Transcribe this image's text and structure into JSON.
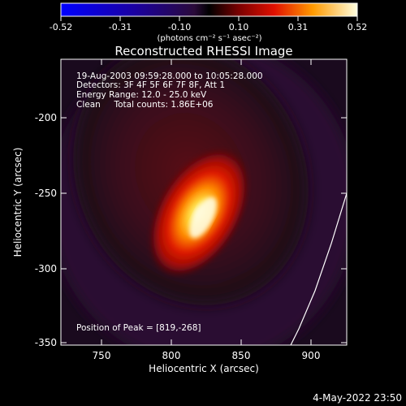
{
  "colorbar": {
    "ticks": [
      "-0.52",
      "-0.31",
      "-0.10",
      "0.10",
      "0.31",
      "0.52"
    ],
    "unit": "(photons cm⁻² s⁻¹ asec⁻²)"
  },
  "plot": {
    "title": "Reconstructed RHESSI Image",
    "xlabel": "Heliocentric X (arcsec)",
    "ylabel": "Heliocentric Y (arcsec)",
    "xticks": [
      "750",
      "800",
      "850",
      "900"
    ],
    "yticks": [
      "-200",
      "-250",
      "-300",
      "-350"
    ],
    "info": [
      "19-Aug-2003 09:59:28.000 to 10:05:28.000",
      "Detectors: 3F 4F 5F 6F 7F 8F, Att 1",
      "Energy Range: 12.0 - 25.0 keV",
      "Clean     Total counts: 1.86E+06"
    ],
    "peak": "Position of Peak = [819,-268]"
  },
  "footer": {
    "timestamp": "4-May-2022 23:50"
  }
}
